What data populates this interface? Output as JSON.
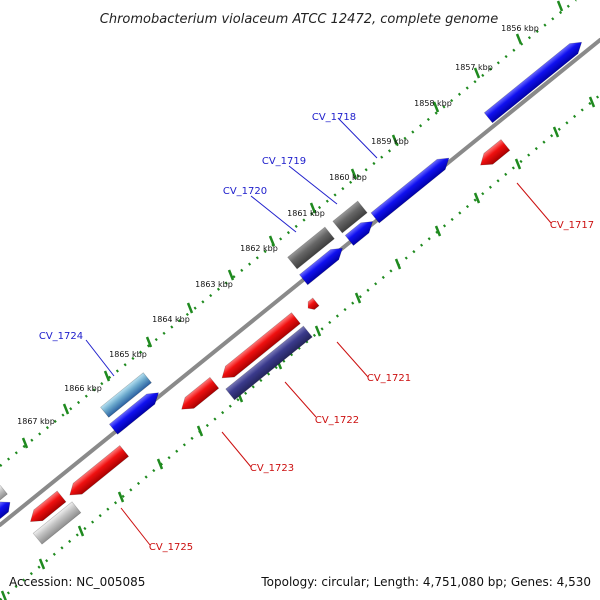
{
  "title": "Chromobacterium violaceum ATCC 12472, complete genome",
  "footer": {
    "accession": "Accession: NC_005085",
    "summary": "Topology: circular; Length: 4,751,080 bp; Genes: 4,530"
  },
  "ticks": [
    "1856 kbp",
    "1857 kbp",
    "1858 kbp",
    "1859 kbp",
    "1860 kbp",
    "1861 kbp",
    "1862 kbp",
    "1863 kbp",
    "1864 kbp",
    "1865 kbp",
    "1866 kbp",
    "1867 kbp"
  ],
  "labels_plus": [
    "CV_1718",
    "CV_1719",
    "CV_1720",
    "CV_1724"
  ],
  "labels_minus": [
    "CV_1717",
    "CV_1721",
    "CV_1722",
    "CV_1723",
    "CV_1725"
  ],
  "colors": {
    "plus_gene": "#1010f0",
    "minus_gene": "#f01010",
    "gray_gene": "#666666",
    "navy_gene": "#3a3a8c",
    "light_gray_gene": "#bdbdbd",
    "backbone": "#888888",
    "tick_green": "#1f8a1f",
    "plus_label": "#2020cc",
    "minus_label": "#cc1010"
  }
}
